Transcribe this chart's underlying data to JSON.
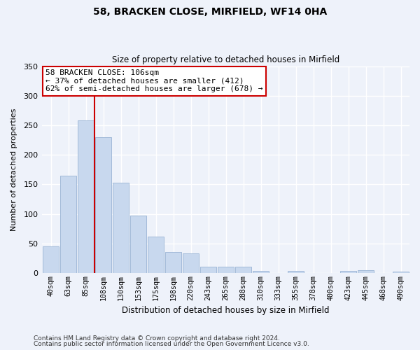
{
  "title": "58, BRACKEN CLOSE, MIRFIELD, WF14 0HA",
  "subtitle": "Size of property relative to detached houses in Mirfield",
  "xlabel": "Distribution of detached houses by size in Mirfield",
  "ylabel": "Number of detached properties",
  "bar_color": "#c8d8ee",
  "bar_edge_color": "#9ab4d4",
  "background_color": "#eef2fa",
  "grid_color": "#ffffff",
  "categories": [
    "40sqm",
    "63sqm",
    "85sqm",
    "108sqm",
    "130sqm",
    "153sqm",
    "175sqm",
    "198sqm",
    "220sqm",
    "243sqm",
    "265sqm",
    "288sqm",
    "310sqm",
    "333sqm",
    "355sqm",
    "378sqm",
    "400sqm",
    "423sqm",
    "445sqm",
    "468sqm",
    "490sqm"
  ],
  "values": [
    45,
    165,
    258,
    230,
    153,
    97,
    61,
    35,
    33,
    10,
    10,
    10,
    4,
    0,
    3,
    0,
    0,
    3,
    5,
    0,
    2
  ],
  "ylim": [
    0,
    350
  ],
  "yticks": [
    0,
    50,
    100,
    150,
    200,
    250,
    300,
    350
  ],
  "vline_index": 3,
  "vline_color": "#cc0000",
  "annotation_text": "58 BRACKEN CLOSE: 106sqm\n← 37% of detached houses are smaller (412)\n62% of semi-detached houses are larger (678) →",
  "annotation_box_color": "#ffffff",
  "annotation_box_edge_color": "#cc0000",
  "footer_line1": "Contains HM Land Registry data © Crown copyright and database right 2024.",
  "footer_line2": "Contains public sector information licensed under the Open Government Licence v3.0."
}
